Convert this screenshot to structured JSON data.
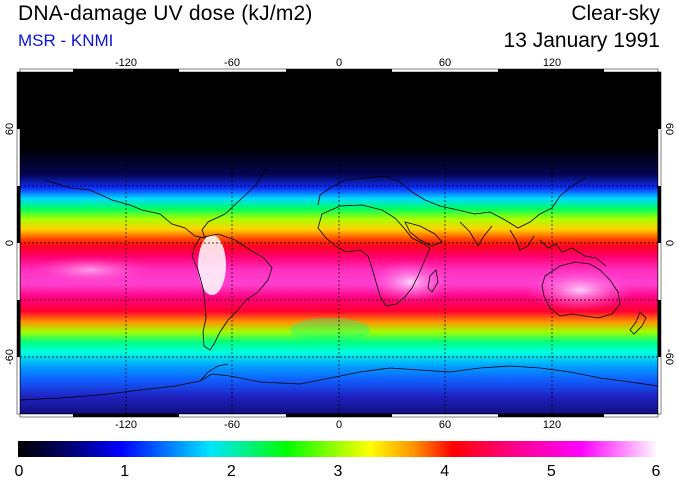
{
  "header": {
    "title": "DNA-damage UV dose (kJ/m2)",
    "subtitle": "MSR - KNMI",
    "condition": "Clear-sky",
    "date": "13 January 1991"
  },
  "map": {
    "projection": "equirectangular",
    "lon_range": [
      -180,
      180
    ],
    "lat_range": [
      -90,
      90
    ],
    "lon_ticks": [
      "-120",
      "-60",
      "0",
      "60",
      "120"
    ],
    "lat_ticks_left": [
      "60",
      "0",
      "-60"
    ],
    "lat_ticks_right": [
      "60",
      "0",
      "-60"
    ]
  },
  "colorbar": {
    "ticks": [
      "0",
      "1",
      "2",
      "3",
      "4",
      "5",
      "6"
    ],
    "min": 0,
    "max": 6,
    "stops": [
      "#000000",
      "#000080",
      "#0000ff",
      "#00e5ff",
      "#00ff00",
      "#ffff00",
      "#ff8000",
      "#ff0000",
      "#ff0080",
      "#ff00ff",
      "#ff80ff",
      "#ffffff"
    ]
  }
}
